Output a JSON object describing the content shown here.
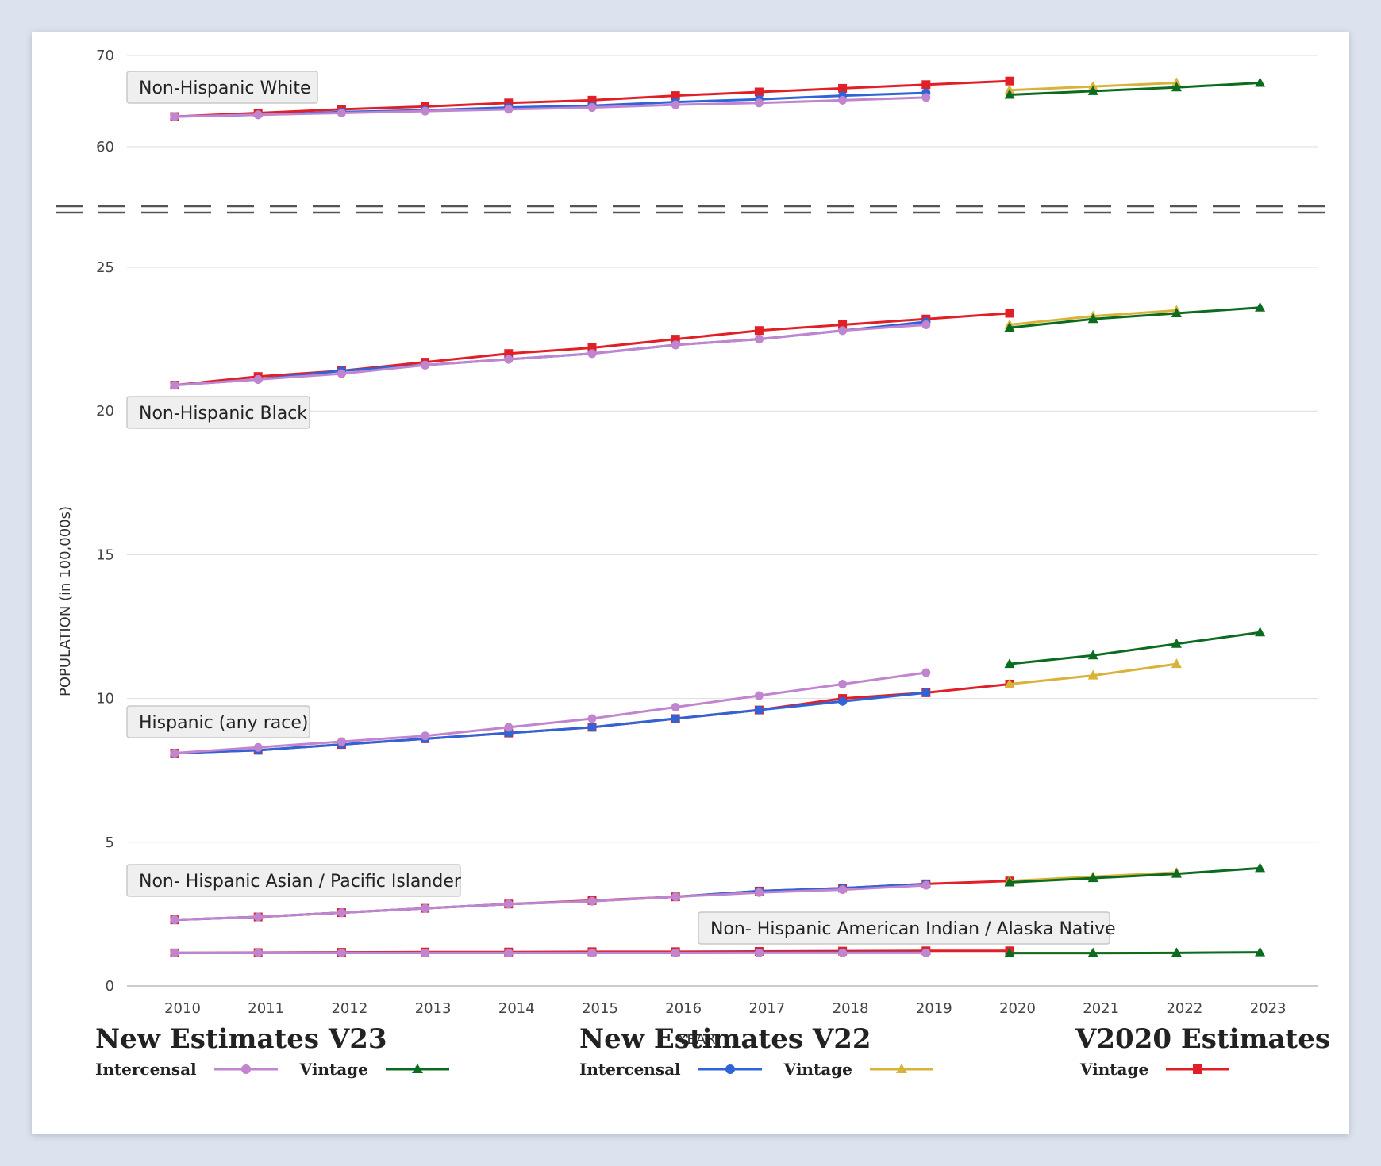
{
  "chart_data": {
    "type": "line",
    "ylabel": "POPULATION (in 100,000s)",
    "xlabel": "YEAR",
    "x": [
      2010,
      2011,
      2012,
      2013,
      2014,
      2015,
      2016,
      2017,
      2018,
      2019,
      2020,
      2021,
      2022,
      2023
    ],
    "y_ticks_upper": [
      60,
      70
    ],
    "y_ticks_lower": [
      0,
      5,
      10,
      15,
      20,
      25
    ],
    "axis_break": "between 25 and 60",
    "groups": [
      {
        "label": "Non-Hispanic White",
        "series": {
          "v23_intercensal": {
            "x": [
              2010,
              2011,
              2012,
              2013,
              2014,
              2015,
              2016,
              2017,
              2018,
              2019
            ],
            "values": [
              63.3,
              63.5,
              63.7,
              63.9,
              64.1,
              64.3,
              64.6,
              64.8,
              65.1,
              65.4
            ]
          },
          "v22_intercensal": {
            "x": [
              2010,
              2011,
              2012,
              2013,
              2014,
              2015,
              2016,
              2017,
              2018,
              2019
            ],
            "values": [
              63.3,
              63.5,
              63.8,
              64.0,
              64.3,
              64.5,
              64.9,
              65.2,
              65.6,
              65.9
            ]
          },
          "v2020_vintage": {
            "x": [
              2010,
              2011,
              2012,
              2013,
              2014,
              2015,
              2016,
              2017,
              2018,
              2019,
              2020
            ],
            "values": [
              63.3,
              63.7,
              64.1,
              64.4,
              64.8,
              65.1,
              65.6,
              66.0,
              66.4,
              66.8,
              67.2
            ]
          },
          "v22_vintage": {
            "x": [
              2020,
              2021,
              2022
            ],
            "values": [
              66.2,
              66.6,
              67.0
            ]
          },
          "v23_vintage": {
            "x": [
              2020,
              2021,
              2022,
              2023
            ],
            "values": [
              65.7,
              66.1,
              66.5,
              67.0
            ]
          }
        }
      },
      {
        "label": "Non-Hispanic Black",
        "series": {
          "v23_intercensal": {
            "x": [
              2010,
              2011,
              2012,
              2013,
              2014,
              2015,
              2016,
              2017,
              2018,
              2019
            ],
            "values": [
              20.9,
              21.1,
              21.3,
              21.6,
              21.8,
              22.0,
              22.3,
              22.5,
              22.8,
              23.0
            ]
          },
          "v22_intercensal": {
            "x": [
              2010,
              2011,
              2012,
              2013,
              2014,
              2015,
              2016,
              2017,
              2018,
              2019
            ],
            "values": [
              20.9,
              21.1,
              21.4,
              21.6,
              21.8,
              22.0,
              22.3,
              22.5,
              22.8,
              23.1
            ]
          },
          "v2020_vintage": {
            "x": [
              2010,
              2011,
              2012,
              2013,
              2014,
              2015,
              2016,
              2017,
              2018,
              2019,
              2020
            ],
            "values": [
              20.9,
              21.2,
              21.4,
              21.7,
              22.0,
              22.2,
              22.5,
              22.8,
              23.0,
              23.2,
              23.4
            ]
          },
          "v22_vintage": {
            "x": [
              2020,
              2021,
              2022
            ],
            "values": [
              23.0,
              23.3,
              23.5
            ]
          },
          "v23_vintage": {
            "x": [
              2020,
              2021,
              2022,
              2023
            ],
            "values": [
              22.9,
              23.2,
              23.4,
              23.6
            ]
          }
        }
      },
      {
        "label": "Hispanic (any race)",
        "series": {
          "v23_intercensal": {
            "x": [
              2010,
              2011,
              2012,
              2013,
              2014,
              2015,
              2016,
              2017,
              2018,
              2019
            ],
            "values": [
              8.1,
              8.3,
              8.5,
              8.7,
              9.0,
              9.3,
              9.7,
              10.1,
              10.5,
              10.9
            ]
          },
          "v22_intercensal": {
            "x": [
              2010,
              2011,
              2012,
              2013,
              2014,
              2015,
              2016,
              2017,
              2018,
              2019
            ],
            "values": [
              8.1,
              8.2,
              8.4,
              8.6,
              8.8,
              9.0,
              9.3,
              9.6,
              9.9,
              10.2
            ]
          },
          "v2020_vintage": {
            "x": [
              2010,
              2011,
              2012,
              2013,
              2014,
              2015,
              2016,
              2017,
              2018,
              2019,
              2020
            ],
            "values": [
              8.1,
              8.2,
              8.4,
              8.6,
              8.8,
              9.0,
              9.3,
              9.6,
              10.0,
              10.2,
              10.5
            ]
          },
          "v22_vintage": {
            "x": [
              2020,
              2021,
              2022
            ],
            "values": [
              10.5,
              10.8,
              11.2
            ]
          },
          "v23_vintage": {
            "x": [
              2020,
              2021,
              2022,
              2023
            ],
            "values": [
              11.2,
              11.5,
              11.9,
              12.3
            ]
          }
        }
      },
      {
        "label": "Non- Hispanic Asian / Pacific Islander",
        "series": {
          "v23_intercensal": {
            "x": [
              2010,
              2011,
              2012,
              2013,
              2014,
              2015,
              2016,
              2017,
              2018,
              2019
            ],
            "values": [
              2.3,
              2.4,
              2.55,
              2.7,
              2.85,
              2.95,
              3.1,
              3.25,
              3.35,
              3.5
            ]
          },
          "v22_intercensal": {
            "x": [
              2010,
              2011,
              2012,
              2013,
              2014,
              2015,
              2016,
              2017,
              2018,
              2019
            ],
            "values": [
              2.3,
              2.4,
              2.55,
              2.7,
              2.85,
              2.95,
              3.1,
              3.3,
              3.4,
              3.55
            ]
          },
          "v2020_vintage": {
            "x": [
              2010,
              2011,
              2012,
              2013,
              2014,
              2015,
              2016,
              2017,
              2018,
              2019,
              2020
            ],
            "values": [
              2.3,
              2.4,
              2.55,
              2.7,
              2.85,
              2.97,
              3.1,
              3.3,
              3.4,
              3.55,
              3.65
            ]
          },
          "v22_vintage": {
            "x": [
              2020,
              2021,
              2022
            ],
            "values": [
              3.65,
              3.8,
              3.95
            ]
          },
          "v23_vintage": {
            "x": [
              2020,
              2021,
              2022,
              2023
            ],
            "values": [
              3.6,
              3.75,
              3.9,
              4.1
            ]
          }
        }
      },
      {
        "label": "Non- Hispanic American Indian / Alaska Native",
        "series": {
          "v23_intercensal": {
            "x": [
              2010,
              2011,
              2012,
              2013,
              2014,
              2015,
              2016,
              2017,
              2018,
              2019
            ],
            "values": [
              1.15,
              1.15,
              1.15,
              1.15,
              1.15,
              1.15,
              1.15,
              1.15,
              1.15,
              1.15
            ]
          },
          "v22_intercensal": {
            "x": [
              2010,
              2011,
              2012,
              2013,
              2014,
              2015,
              2016,
              2017,
              2018,
              2019
            ],
            "values": [
              1.15,
              1.15,
              1.15,
              1.15,
              1.15,
              1.15,
              1.15,
              1.16,
              1.16,
              1.16
            ]
          },
          "v2020_vintage": {
            "x": [
              2010,
              2011,
              2012,
              2013,
              2014,
              2015,
              2016,
              2017,
              2018,
              2019,
              2020
            ],
            "values": [
              1.15,
              1.16,
              1.17,
              1.18,
              1.18,
              1.19,
              1.19,
              1.2,
              1.21,
              1.22,
              1.22
            ]
          },
          "v22_vintage": {
            "x": [
              2020,
              2021,
              2022
            ],
            "values": [
              1.14,
              1.14,
              1.15
            ]
          },
          "v23_vintage": {
            "x": [
              2020,
              2021,
              2022,
              2023
            ],
            "values": [
              1.14,
              1.14,
              1.15,
              1.17
            ]
          }
        }
      }
    ],
    "series_styles": {
      "v23_intercensal": {
        "color": "#c184cf",
        "marker": "circle"
      },
      "v23_vintage": {
        "color": "#0b6b1f",
        "marker": "triangle"
      },
      "v22_intercensal": {
        "color": "#2f64d8",
        "marker": "circle"
      },
      "v22_vintage": {
        "color": "#d9b23a",
        "marker": "triangle"
      },
      "v2020_vintage": {
        "color": "#e01f26",
        "marker": "square"
      }
    },
    "draw_order": [
      "v2020_vintage",
      "v22_intercensal",
      "v23_intercensal",
      "v22_vintage",
      "v23_vintage"
    ]
  },
  "legend": {
    "v23": {
      "title": "New Estimates V23",
      "intercensal": "Intercensal",
      "vintage": "Vintage"
    },
    "v22": {
      "title": "New Estimates V22",
      "intercensal": "Intercensal",
      "vintage": "Vintage"
    },
    "v2020": {
      "title": "V2020 Estimates",
      "vintage": "Vintage"
    }
  }
}
